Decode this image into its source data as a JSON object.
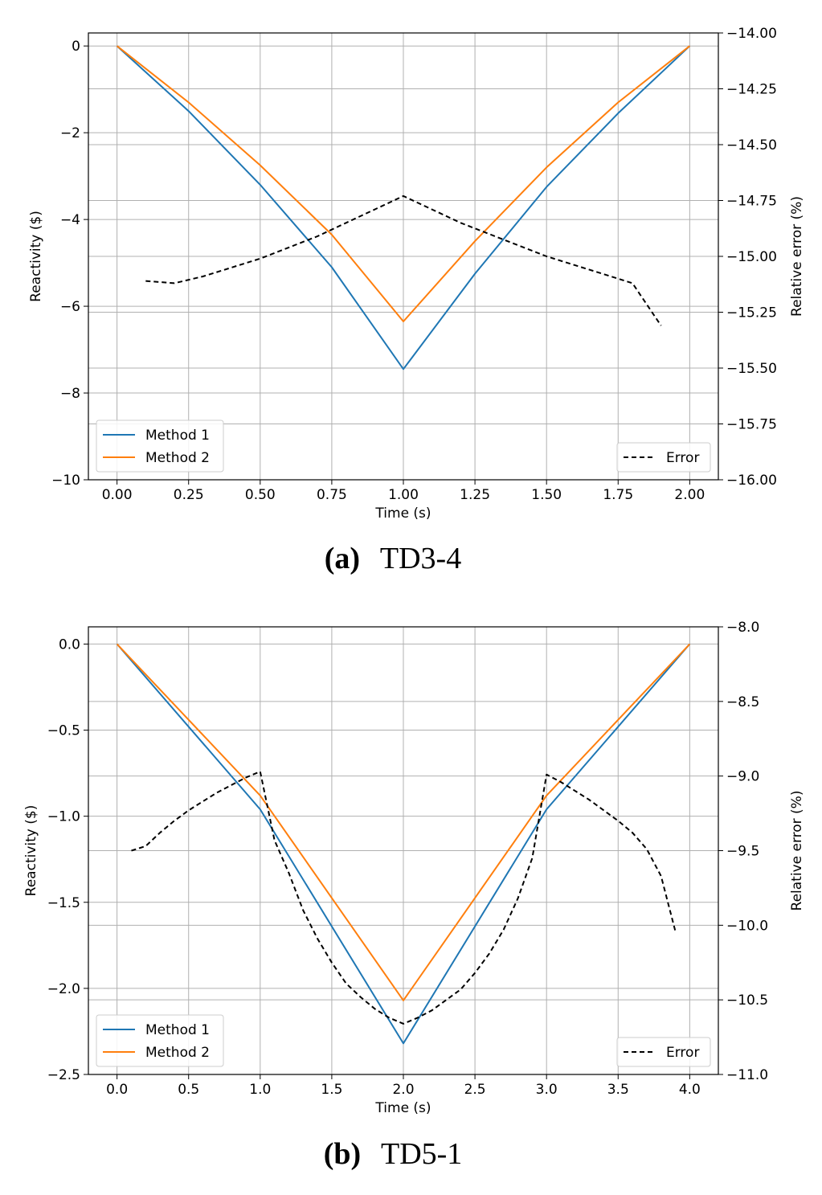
{
  "chart_data": [
    {
      "type": "line",
      "caption_letter": "(a)",
      "caption_text": "TD3-4",
      "xlabel": "Time (s)",
      "ylabel": "Reactivity ($)",
      "ylabel_right": "Relative error (%)",
      "xlim": [
        -0.1,
        2.1
      ],
      "ylim": [
        -10,
        0.3
      ],
      "ylim_right": [
        -16.0,
        -14.0
      ],
      "xticks": [
        0.0,
        0.25,
        0.5,
        0.75,
        1.0,
        1.25,
        1.5,
        1.75,
        2.0
      ],
      "xtick_labels": [
        "0.00",
        "0.25",
        "0.50",
        "0.75",
        "1.00",
        "1.25",
        "1.50",
        "1.75",
        "2.00"
      ],
      "yticks": [
        0,
        -2,
        -4,
        -6,
        -8,
        -10
      ],
      "ytick_labels": [
        "0",
        "−2",
        "−4",
        "−6",
        "−8",
        "−10"
      ],
      "yticks_right": [
        -14.0,
        -14.25,
        -14.5,
        -14.75,
        -15.0,
        -15.25,
        -15.5,
        -15.75,
        -16.0
      ],
      "ytick_labels_right": [
        "−14.00",
        "−14.25",
        "−14.50",
        "−14.75",
        "−15.00",
        "−15.25",
        "−15.50",
        "−15.75",
        "−16.00"
      ],
      "grid": true,
      "legend_left": "lower left",
      "legend_right": "lower right",
      "series": [
        {
          "name": "Method 1",
          "axis": "left",
          "style": "solid",
          "color": "#1f77b4",
          "x": [
            0.0,
            0.25,
            0.5,
            0.75,
            1.0,
            1.25,
            1.5,
            1.75,
            2.0
          ],
          "y": [
            0.0,
            -1.5,
            -3.2,
            -5.1,
            -7.45,
            -5.25,
            -3.25,
            -1.55,
            0.0
          ]
        },
        {
          "name": "Method 2",
          "axis": "left",
          "style": "solid",
          "color": "#ff7f0e",
          "x": [
            0.0,
            0.25,
            0.5,
            0.75,
            1.0,
            1.25,
            1.5,
            1.75,
            2.0
          ],
          "y": [
            0.0,
            -1.3,
            -2.75,
            -4.35,
            -6.35,
            -4.5,
            -2.8,
            -1.3,
            0.0
          ]
        },
        {
          "name": "Error",
          "axis": "right",
          "style": "dashed",
          "color": "#000000",
          "x": [
            0.1,
            0.2,
            0.3,
            0.4,
            0.5,
            0.6,
            0.7,
            0.8,
            0.9,
            1.0,
            1.1,
            1.2,
            1.3,
            1.4,
            1.5,
            1.6,
            1.7,
            1.8,
            1.9
          ],
          "y": [
            -15.11,
            -15.12,
            -15.09,
            -15.05,
            -15.01,
            -14.96,
            -14.91,
            -14.85,
            -14.79,
            -14.73,
            -14.79,
            -14.85,
            -14.9,
            -14.95,
            -15.0,
            -15.04,
            -15.08,
            -15.12,
            -15.31
          ]
        }
      ]
    },
    {
      "type": "line",
      "caption_letter": "(b)",
      "caption_text": "TD5-1",
      "xlabel": "Time (s)",
      "ylabel": "Reactivity ($)",
      "ylabel_right": "Relative error (%)",
      "xlim": [
        -0.2,
        4.2
      ],
      "ylim": [
        -2.5,
        0.1
      ],
      "ylim_right": [
        -11.0,
        -8.0
      ],
      "xticks": [
        0.0,
        0.5,
        1.0,
        1.5,
        2.0,
        2.5,
        3.0,
        3.5,
        4.0
      ],
      "xtick_labels": [
        "0.0",
        "0.5",
        "1.0",
        "1.5",
        "2.0",
        "2.5",
        "3.0",
        "3.5",
        "4.0"
      ],
      "yticks": [
        0.0,
        -0.5,
        -1.0,
        -1.5,
        -2.0,
        -2.5
      ],
      "ytick_labels": [
        "0.0",
        "−0.5",
        "−1.0",
        "−1.5",
        "−2.0",
        "−2.5"
      ],
      "yticks_right": [
        -8.0,
        -8.5,
        -9.0,
        -9.5,
        -10.0,
        -10.5,
        -11.0
      ],
      "ytick_labels_right": [
        "−8.0",
        "−8.5",
        "−9.0",
        "−9.5",
        "−10.0",
        "−10.5",
        "−11.0"
      ],
      "grid": true,
      "legend_left": "lower left",
      "legend_right": "lower right",
      "series": [
        {
          "name": "Method 1",
          "axis": "left",
          "style": "solid",
          "color": "#1f77b4",
          "x": [
            0.0,
            1.0,
            2.0,
            3.0,
            4.0
          ],
          "y": [
            0.0,
            -0.96,
            -2.32,
            -0.96,
            0.0
          ]
        },
        {
          "name": "Method 2",
          "axis": "left",
          "style": "solid",
          "color": "#ff7f0e",
          "x": [
            0.0,
            1.0,
            2.0,
            3.0,
            4.0
          ],
          "y": [
            0.0,
            -0.88,
            -2.07,
            -0.88,
            0.0
          ]
        },
        {
          "name": "Error",
          "axis": "right",
          "style": "dashed",
          "color": "#000000",
          "x": [
            0.1,
            0.2,
            0.3,
            0.4,
            0.5,
            0.6,
            0.7,
            0.8,
            0.9,
            1.0,
            1.1,
            1.2,
            1.3,
            1.4,
            1.5,
            1.6,
            1.7,
            1.8,
            1.9,
            2.0,
            2.1,
            2.2,
            2.3,
            2.4,
            2.5,
            2.6,
            2.7,
            2.8,
            2.9,
            3.0,
            3.1,
            3.2,
            3.3,
            3.4,
            3.5,
            3.6,
            3.7,
            3.8,
            3.9
          ],
          "y": [
            -9.5,
            -9.47,
            -9.38,
            -9.3,
            -9.23,
            -9.17,
            -9.11,
            -9.06,
            -9.01,
            -8.97,
            -9.43,
            -9.65,
            -9.9,
            -10.09,
            -10.25,
            -10.39,
            -10.48,
            -10.56,
            -10.62,
            -10.66,
            -10.62,
            -10.57,
            -10.5,
            -10.43,
            -10.32,
            -10.19,
            -10.03,
            -9.82,
            -9.55,
            -8.99,
            -9.04,
            -9.1,
            -9.16,
            -9.23,
            -9.3,
            -9.38,
            -9.49,
            -9.67,
            -10.04
          ]
        }
      ]
    }
  ]
}
